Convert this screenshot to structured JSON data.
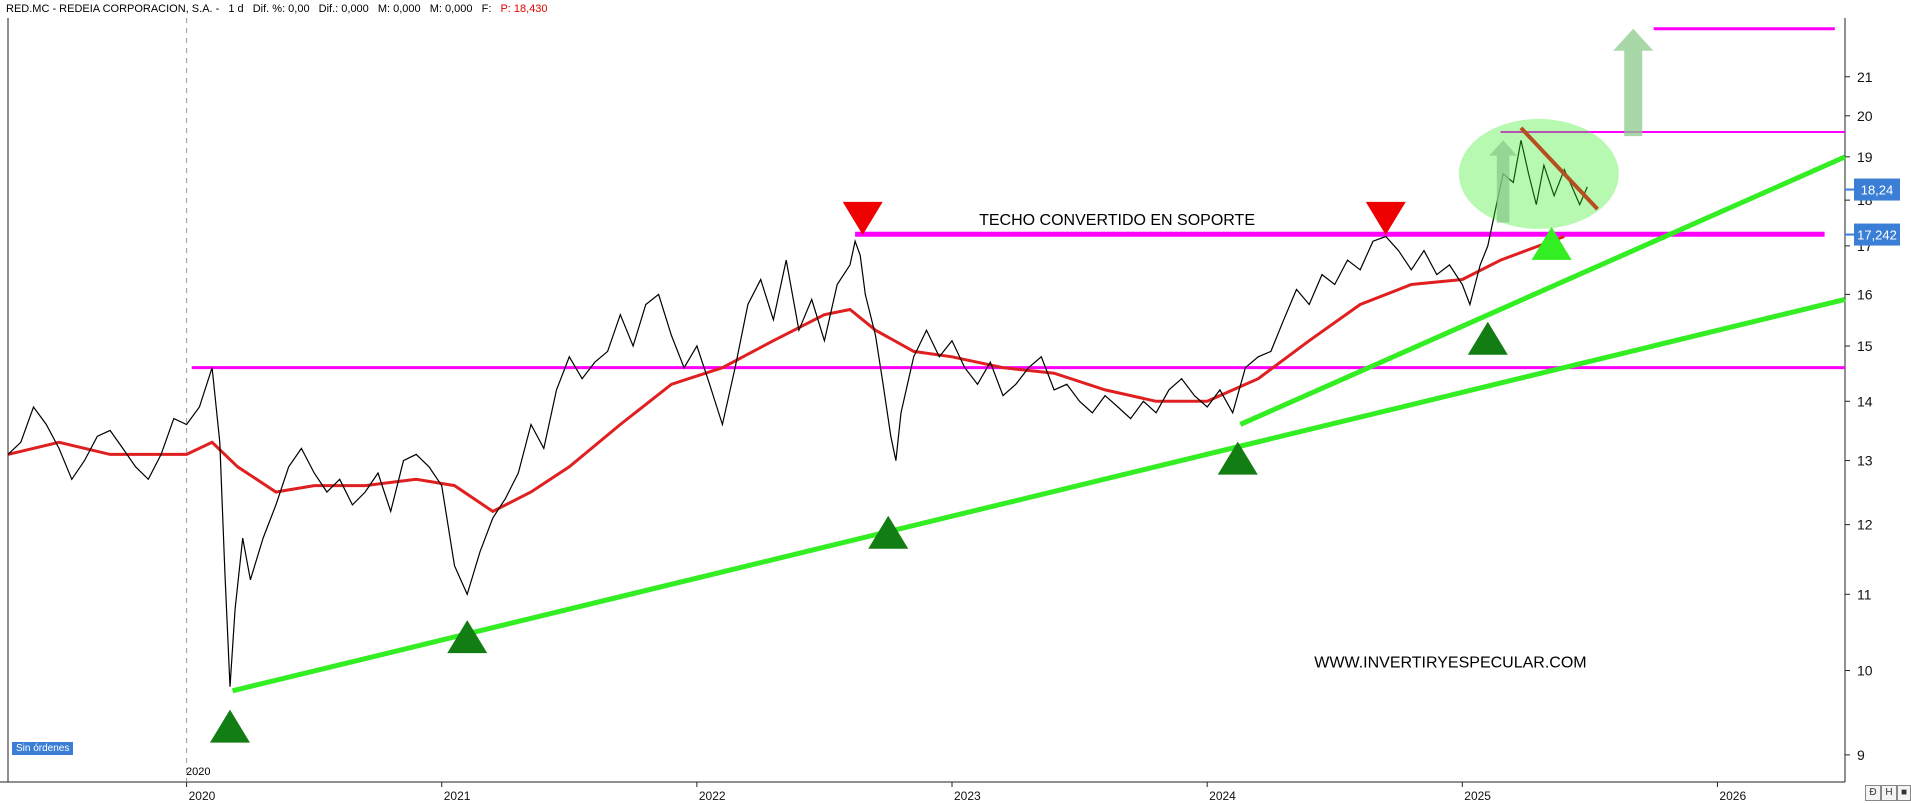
{
  "header": {
    "ticker": "RED.MC - REDEIA CORPORACION, S.A. -",
    "period": "1 d",
    "dif_pct": "Dif. %: 0,00",
    "dif": "Dif.: 0,000",
    "m": "M: 0,000",
    "m2": "M: 0,000",
    "f": "F:",
    "price": "P: 18,430"
  },
  "colors": {
    "price_line": "#000000",
    "moving_average": "#e02020",
    "magenta_levels": "#ff00ff",
    "green_trend": "#33ee22",
    "marker_red": "#ee0000",
    "marker_green": "#127d12",
    "marker_bright_green": "#33ee22",
    "brown_line": "#b5501e",
    "price_tag_bg": "#3a7fd5"
  },
  "chart_data": {
    "type": "line",
    "x_unit": "year",
    "xlim": [
      2019.3,
      2026.5
    ],
    "ylim": [
      8.7,
      22.6
    ],
    "y_scale": "log",
    "y_ticks": [
      9,
      10,
      11,
      12,
      13,
      14,
      15,
      16,
      17,
      18,
      19,
      20,
      21
    ],
    "x_ticks": [
      "2020",
      "2021",
      "2022",
      "2023",
      "2024",
      "2025",
      "2026"
    ],
    "year_divider_label": "2020",
    "price_tags": [
      "18,24",
      "17,242"
    ],
    "series": [
      {
        "kind": "price",
        "points": [
          [
            2019.3,
            13.1
          ],
          [
            2019.35,
            13.3
          ],
          [
            2019.4,
            13.9
          ],
          [
            2019.45,
            13.6
          ],
          [
            2019.5,
            13.2
          ],
          [
            2019.55,
            12.7
          ],
          [
            2019.6,
            13.0
          ],
          [
            2019.65,
            13.4
          ],
          [
            2019.7,
            13.5
          ],
          [
            2019.75,
            13.2
          ],
          [
            2019.8,
            12.9
          ],
          [
            2019.85,
            12.7
          ],
          [
            2019.9,
            13.1
          ],
          [
            2019.95,
            13.7
          ],
          [
            2020.0,
            13.6
          ],
          [
            2020.05,
            13.9
          ],
          [
            2020.1,
            14.6
          ],
          [
            2020.13,
            13.3
          ],
          [
            2020.15,
            11.3
          ],
          [
            2020.17,
            9.8
          ],
          [
            2020.19,
            10.8
          ],
          [
            2020.22,
            11.8
          ],
          [
            2020.25,
            11.2
          ],
          [
            2020.3,
            11.8
          ],
          [
            2020.35,
            12.3
          ],
          [
            2020.4,
            12.9
          ],
          [
            2020.45,
            13.2
          ],
          [
            2020.5,
            12.8
          ],
          [
            2020.55,
            12.5
          ],
          [
            2020.6,
            12.7
          ],
          [
            2020.65,
            12.3
          ],
          [
            2020.7,
            12.5
          ],
          [
            2020.75,
            12.8
          ],
          [
            2020.8,
            12.2
          ],
          [
            2020.85,
            13.0
          ],
          [
            2020.9,
            13.1
          ],
          [
            2020.95,
            12.9
          ],
          [
            2021.0,
            12.6
          ],
          [
            2021.05,
            11.4
          ],
          [
            2021.1,
            11.0
          ],
          [
            2021.15,
            11.6
          ],
          [
            2021.2,
            12.1
          ],
          [
            2021.25,
            12.4
          ],
          [
            2021.3,
            12.8
          ],
          [
            2021.35,
            13.6
          ],
          [
            2021.4,
            13.2
          ],
          [
            2021.45,
            14.2
          ],
          [
            2021.5,
            14.8
          ],
          [
            2021.55,
            14.4
          ],
          [
            2021.6,
            14.7
          ],
          [
            2021.65,
            14.9
          ],
          [
            2021.7,
            15.6
          ],
          [
            2021.75,
            15.0
          ],
          [
            2021.8,
            15.8
          ],
          [
            2021.85,
            16.0
          ],
          [
            2021.9,
            15.2
          ],
          [
            2021.95,
            14.6
          ],
          [
            2022.0,
            15.0
          ],
          [
            2022.05,
            14.3
          ],
          [
            2022.1,
            13.6
          ],
          [
            2022.15,
            14.6
          ],
          [
            2022.2,
            15.8
          ],
          [
            2022.25,
            16.3
          ],
          [
            2022.3,
            15.5
          ],
          [
            2022.35,
            16.7
          ],
          [
            2022.4,
            15.3
          ],
          [
            2022.45,
            15.9
          ],
          [
            2022.5,
            15.1
          ],
          [
            2022.55,
            16.2
          ],
          [
            2022.6,
            16.6
          ],
          [
            2022.62,
            17.1
          ],
          [
            2022.64,
            16.8
          ],
          [
            2022.66,
            16.0
          ],
          [
            2022.7,
            15.2
          ],
          [
            2022.73,
            14.3
          ],
          [
            2022.76,
            13.4
          ],
          [
            2022.78,
            13.0
          ],
          [
            2022.8,
            13.8
          ],
          [
            2022.85,
            14.8
          ],
          [
            2022.9,
            15.3
          ],
          [
            2022.95,
            14.8
          ],
          [
            2023.0,
            15.1
          ],
          [
            2023.05,
            14.6
          ],
          [
            2023.1,
            14.3
          ],
          [
            2023.15,
            14.7
          ],
          [
            2023.2,
            14.1
          ],
          [
            2023.25,
            14.3
          ],
          [
            2023.3,
            14.6
          ],
          [
            2023.35,
            14.8
          ],
          [
            2023.4,
            14.2
          ],
          [
            2023.45,
            14.3
          ],
          [
            2023.5,
            14.0
          ],
          [
            2023.55,
            13.8
          ],
          [
            2023.6,
            14.1
          ],
          [
            2023.65,
            13.9
          ],
          [
            2023.7,
            13.7
          ],
          [
            2023.75,
            14.0
          ],
          [
            2023.8,
            13.8
          ],
          [
            2023.85,
            14.2
          ],
          [
            2023.9,
            14.4
          ],
          [
            2023.95,
            14.1
          ],
          [
            2024.0,
            13.9
          ],
          [
            2024.05,
            14.2
          ],
          [
            2024.1,
            13.8
          ],
          [
            2024.15,
            14.6
          ],
          [
            2024.2,
            14.8
          ],
          [
            2024.25,
            14.9
          ],
          [
            2024.3,
            15.5
          ],
          [
            2024.35,
            16.1
          ],
          [
            2024.4,
            15.8
          ],
          [
            2024.45,
            16.4
          ],
          [
            2024.5,
            16.2
          ],
          [
            2024.55,
            16.7
          ],
          [
            2024.6,
            16.5
          ],
          [
            2024.65,
            17.1
          ],
          [
            2024.7,
            17.2
          ],
          [
            2024.75,
            16.9
          ],
          [
            2024.8,
            16.5
          ],
          [
            2024.85,
            16.9
          ],
          [
            2024.9,
            16.4
          ],
          [
            2024.95,
            16.6
          ],
          [
            2025.0,
            16.2
          ],
          [
            2025.03,
            15.8
          ],
          [
            2025.07,
            16.6
          ],
          [
            2025.1,
            17.0
          ],
          [
            2025.13,
            17.8
          ],
          [
            2025.16,
            18.6
          ],
          [
            2025.2,
            18.4
          ],
          [
            2025.23,
            19.4
          ],
          [
            2025.26,
            18.6
          ],
          [
            2025.29,
            17.9
          ],
          [
            2025.32,
            18.8
          ],
          [
            2025.36,
            18.1
          ],
          [
            2025.4,
            18.7
          ],
          [
            2025.43,
            18.3
          ],
          [
            2025.46,
            17.9
          ],
          [
            2025.49,
            18.3
          ]
        ]
      },
      {
        "kind": "moving_average",
        "points": [
          [
            2019.3,
            13.1
          ],
          [
            2019.5,
            13.3
          ],
          [
            2019.7,
            13.1
          ],
          [
            2020.0,
            13.1
          ],
          [
            2020.1,
            13.3
          ],
          [
            2020.2,
            12.9
          ],
          [
            2020.35,
            12.5
          ],
          [
            2020.5,
            12.6
          ],
          [
            2020.7,
            12.6
          ],
          [
            2020.9,
            12.7
          ],
          [
            2021.05,
            12.6
          ],
          [
            2021.2,
            12.2
          ],
          [
            2021.35,
            12.5
          ],
          [
            2021.5,
            12.9
          ],
          [
            2021.7,
            13.6
          ],
          [
            2021.9,
            14.3
          ],
          [
            2022.1,
            14.6
          ],
          [
            2022.3,
            15.1
          ],
          [
            2022.5,
            15.6
          ],
          [
            2022.6,
            15.7
          ],
          [
            2022.7,
            15.3
          ],
          [
            2022.85,
            14.9
          ],
          [
            2023.0,
            14.8
          ],
          [
            2023.2,
            14.6
          ],
          [
            2023.4,
            14.5
          ],
          [
            2023.6,
            14.2
          ],
          [
            2023.8,
            14.0
          ],
          [
            2024.0,
            14.0
          ],
          [
            2024.2,
            14.4
          ],
          [
            2024.4,
            15.1
          ],
          [
            2024.6,
            15.8
          ],
          [
            2024.8,
            16.2
          ],
          [
            2025.0,
            16.3
          ],
          [
            2025.15,
            16.7
          ],
          [
            2025.3,
            17.0
          ],
          [
            2025.4,
            17.2
          ]
        ]
      }
    ],
    "horizontal_levels": [
      14.6,
      17.25,
      19.6,
      22.3
    ],
    "trendlines": [
      {
        "from": [
          2020.18,
          9.75
        ],
        "to": [
          2026.5,
          15.9
        ]
      },
      {
        "from": [
          2024.13,
          13.6
        ],
        "to": [
          2026.5,
          19.0
        ]
      }
    ],
    "annotations": {
      "support_label": "TECHO CONVERTIDO EN SOPORTE",
      "watermark": "WWW.INVERTIRYESPECULAR.COM",
      "orders_badge": "Sin órdenes"
    }
  },
  "window_controls": [
    "Ð",
    "H",
    "■"
  ]
}
